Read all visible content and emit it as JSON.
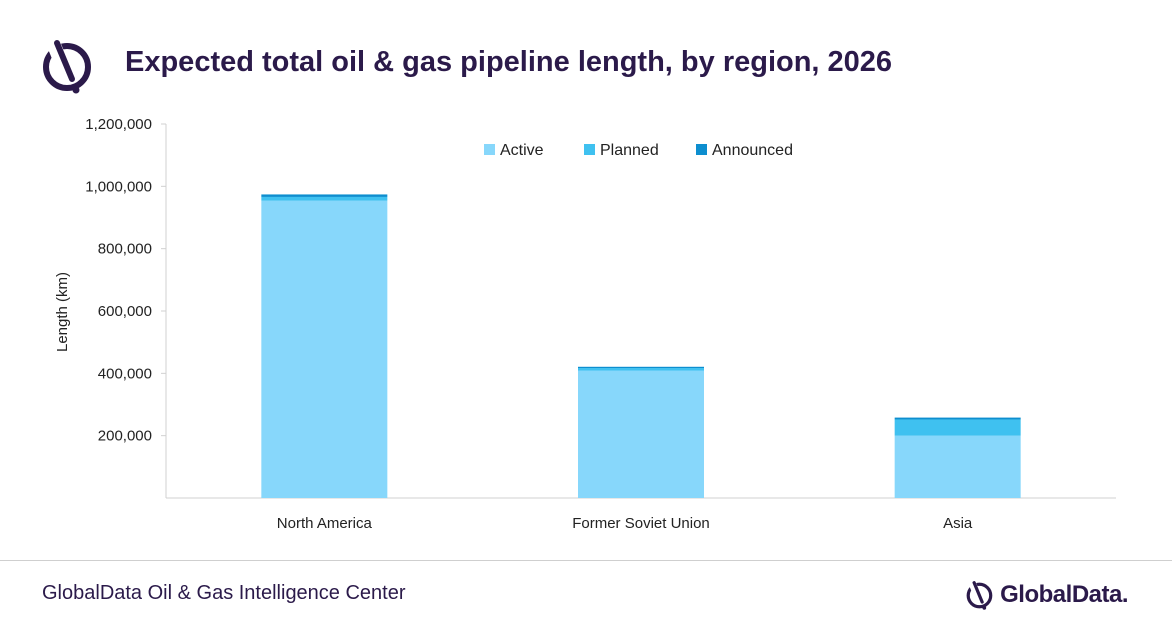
{
  "header": {
    "title": "Expected total oil & gas pipeline length, by region, 2026"
  },
  "footer": {
    "source": "GlobalData Oil & Gas Intelligence Center",
    "brand": "GlobalData."
  },
  "icons": {
    "logo": "globaldata-logo-icon",
    "brand": "globaldata-logo-icon"
  },
  "colors": {
    "title": "#2b1a4a",
    "active": "#87d7fb",
    "planned": "#3fc1f0",
    "announced": "#0d8ecf",
    "axis": "#d0d0d0"
  },
  "chart_data": {
    "type": "bar",
    "stacked": true,
    "ylabel": "Length (km)",
    "xlabel": "",
    "ylim": [
      0,
      1200000
    ],
    "yticks": [
      200000,
      400000,
      600000,
      800000,
      1000000,
      1200000
    ],
    "ytick_labels": [
      "200,000",
      "400,000",
      "600,000",
      "800,000",
      "1,000,000",
      "1,200,000"
    ],
    "categories": [
      "North America",
      "Former Soviet Union",
      "Asia"
    ],
    "series": [
      {
        "name": "Active",
        "values": [
          954000,
          409000,
          200000
        ],
        "color": "#87d7fb"
      },
      {
        "name": "Planned",
        "values": [
          12000,
          8000,
          52000
        ],
        "color": "#3fc1f0"
      },
      {
        "name": "Announced",
        "values": [
          8000,
          4000,
          6000
        ],
        "color": "#0d8ecf"
      }
    ],
    "legend_position": "top-center",
    "grid": false
  }
}
